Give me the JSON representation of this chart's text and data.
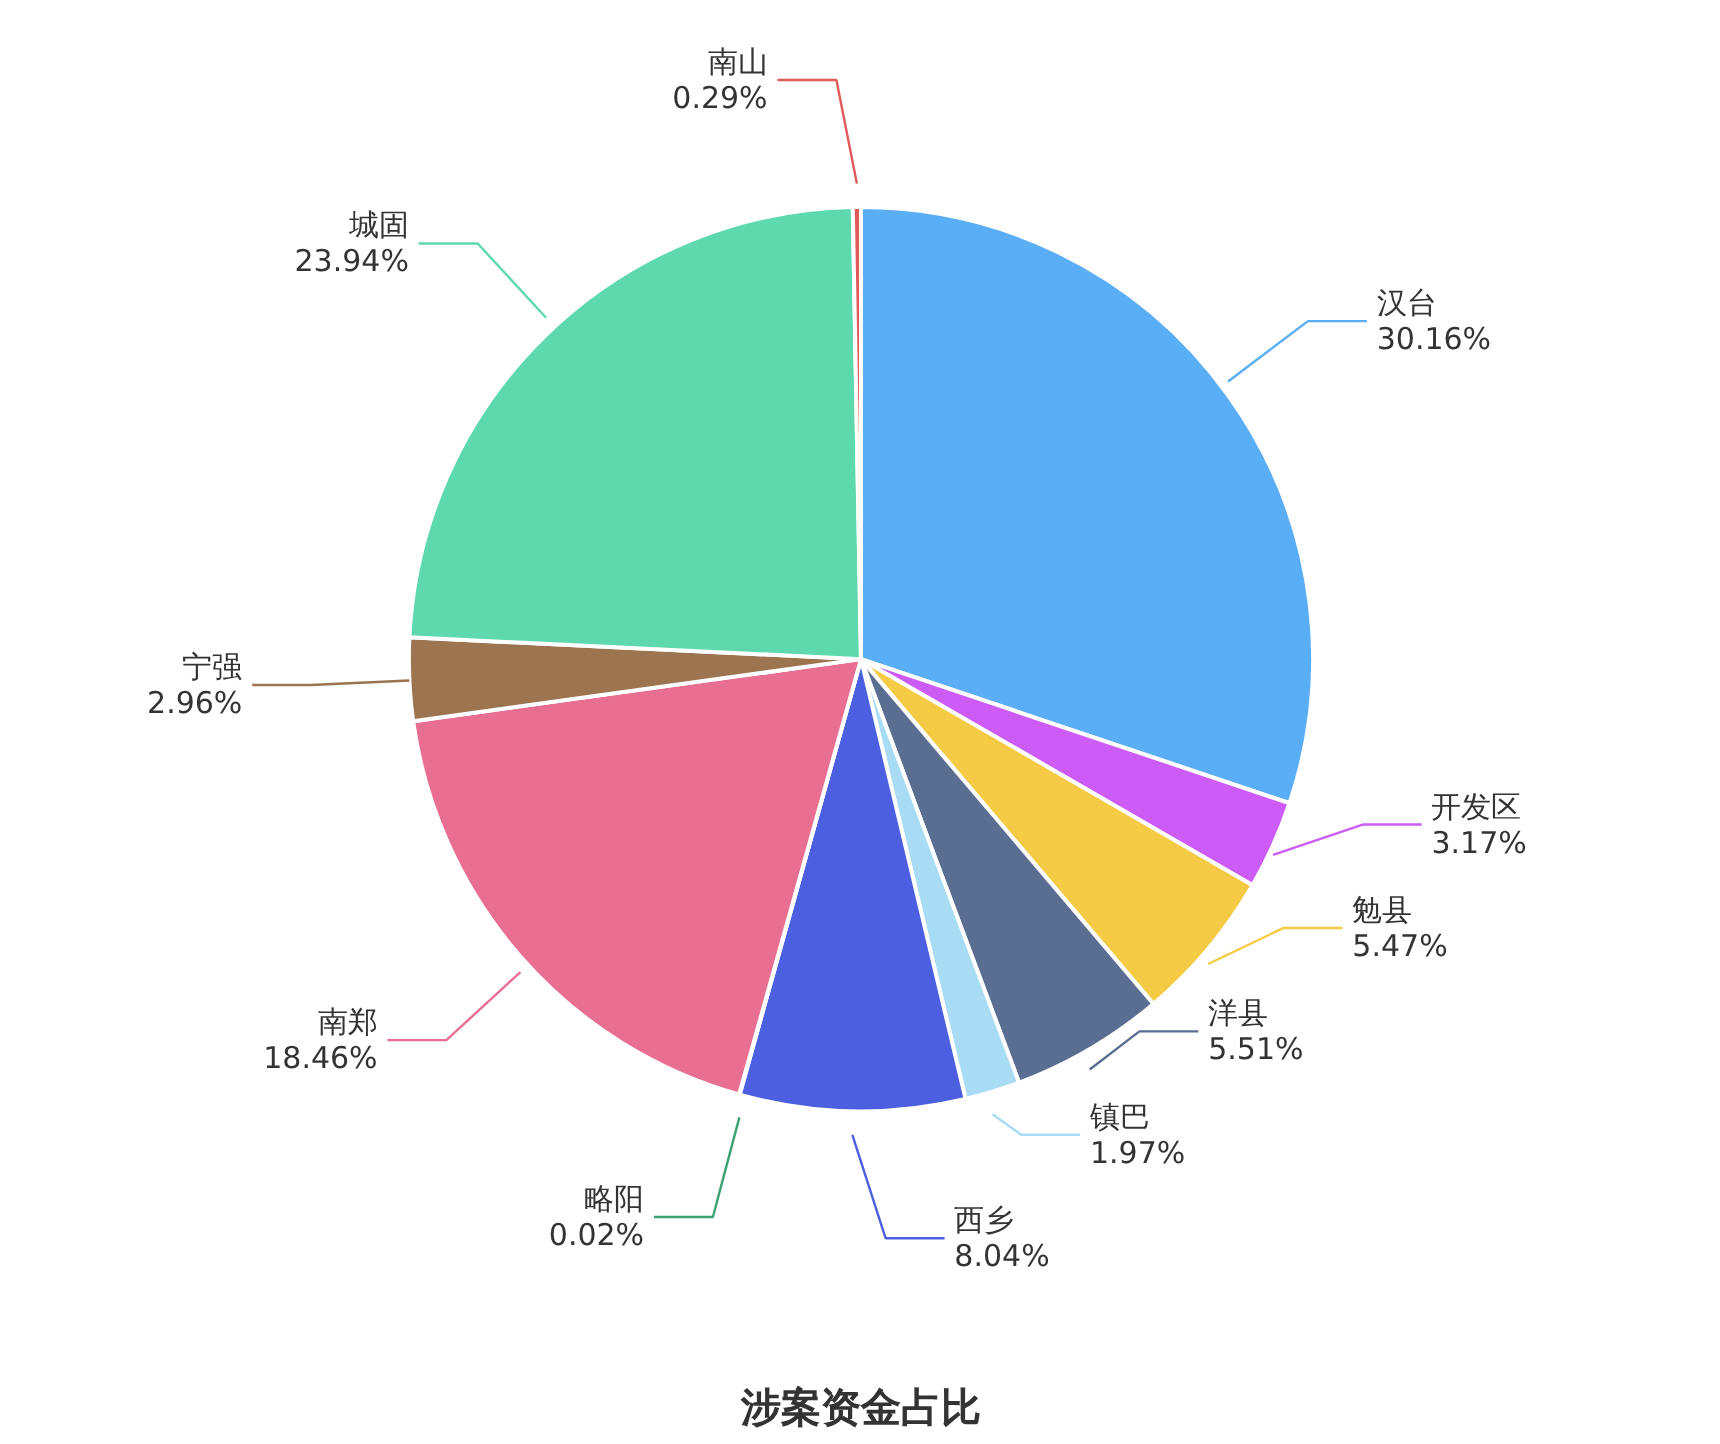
{
  "chart_data": {
    "type": "pie",
    "title": "涉案资金占比",
    "categories": [
      "汉台",
      "开发区",
      "勉县",
      "洋县",
      "镇巴",
      "西乡",
      "略阳",
      "南郑",
      "宁强",
      "城固",
      "南山"
    ],
    "values": [
      30.16,
      3.17,
      5.47,
      5.51,
      1.97,
      8.04,
      0.02,
      18.46,
      2.96,
      23.94,
      0.29
    ],
    "value_labels": [
      "30.16%",
      "3.17%",
      "5.47%",
      "5.51%",
      "1.97%",
      "8.04%",
      "0.02%",
      "18.46%",
      "2.96%",
      "23.94%",
      "0.29%"
    ],
    "colors": [
      "#5aaef5",
      "#cc5cf5",
      "#f5cb45",
      "#5a6e91",
      "#a8dcf5",
      "#4b5fe0",
      "#3ba272",
      "#e86f91",
      "#9c7450",
      "#5ed9ae",
      "#e05a5a"
    ]
  }
}
